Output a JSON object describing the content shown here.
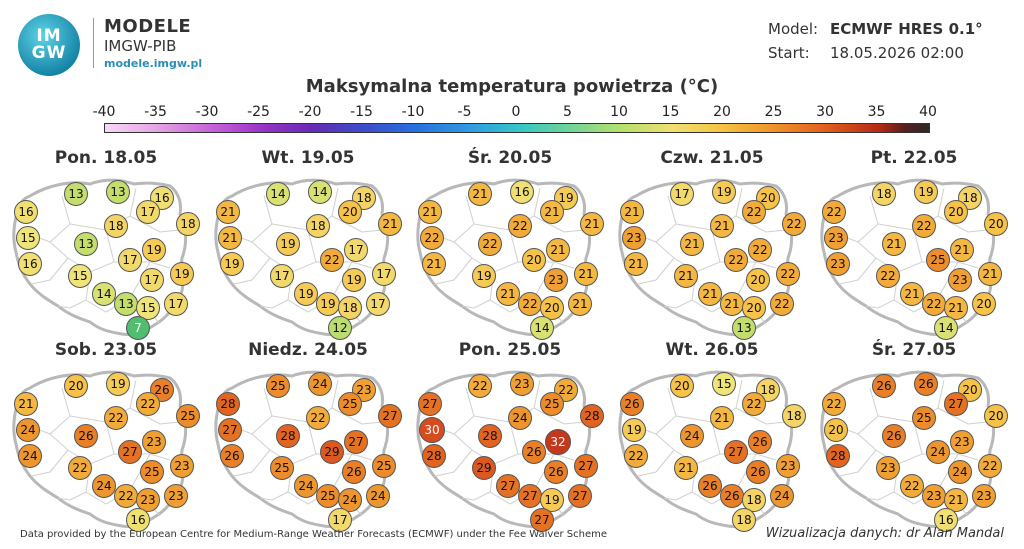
{
  "header": {
    "logo_text_top": "IM",
    "logo_text_bottom": "GW",
    "brand_title": "MODELE",
    "brand_subtitle": "IMGW-PIB",
    "brand_url": "modele.imgw.pl",
    "model_label": "Model:",
    "model_value": "ECMWF HRES 0.1°",
    "start_label": "Start:",
    "start_value": "18.05.2026 02:00"
  },
  "title": "Maksymalna temperatura powietrza (°C)",
  "scale": {
    "ticks": [
      "-40",
      "-35",
      "-30",
      "-25",
      "-20",
      "-15",
      "-10",
      "-5",
      "0",
      "5",
      "10",
      "15",
      "20",
      "25",
      "30",
      "35",
      "40"
    ],
    "min": -40,
    "max": 40
  },
  "panels": [
    {
      "title": "Pon. 18.05",
      "values": [
        13,
        13,
        16,
        16,
        18,
        17,
        18,
        15,
        13,
        19,
        16,
        17,
        15,
        17,
        19,
        14,
        13,
        15,
        17,
        7
      ]
    },
    {
      "title": "Wt. 19.05",
      "values": [
        14,
        14,
        18,
        21,
        18,
        20,
        21,
        21,
        19,
        17,
        19,
        22,
        17,
        19,
        17,
        19,
        19,
        18,
        17,
        12
      ]
    },
    {
      "title": "Śr. 20.05",
      "values": [
        21,
        16,
        19,
        21,
        22,
        21,
        21,
        22,
        22,
        21,
        21,
        20,
        19,
        23,
        21,
        21,
        22,
        20,
        21,
        14
      ]
    },
    {
      "title": "Czw. 21.05",
      "values": [
        17,
        19,
        20,
        21,
        21,
        22,
        22,
        23,
        21,
        22,
        21,
        22,
        21,
        20,
        22,
        21,
        21,
        20,
        22,
        13
      ]
    },
    {
      "title": "Pt. 22.05",
      "values": [
        18,
        19,
        18,
        22,
        22,
        20,
        20,
        23,
        21,
        21,
        23,
        25,
        22,
        23,
        21,
        21,
        22,
        21,
        20,
        14
      ]
    },
    {
      "title": "Sob. 23.05",
      "values": [
        20,
        19,
        26,
        21,
        22,
        22,
        25,
        24,
        26,
        23,
        24,
        27,
        22,
        25,
        23,
        24,
        22,
        23,
        23,
        16
      ]
    },
    {
      "title": "Niedz. 24.05",
      "values": [
        25,
        24,
        23,
        28,
        22,
        25,
        27,
        27,
        28,
        27,
        26,
        29,
        25,
        26,
        25,
        24,
        25,
        24,
        24,
        17
      ]
    },
    {
      "title": "Pon. 25.05",
      "values": [
        22,
        23,
        22,
        27,
        24,
        25,
        28,
        30,
        28,
        32,
        28,
        26,
        29,
        26,
        27,
        27,
        27,
        19,
        27,
        27
      ]
    },
    {
      "title": "Wt. 26.05",
      "values": [
        20,
        15,
        18,
        26,
        21,
        22,
        18,
        19,
        24,
        26,
        22,
        27,
        21,
        26,
        23,
        26,
        26,
        18,
        24,
        18
      ]
    },
    {
      "title": "Śr. 27.05",
      "values": [
        26,
        26,
        20,
        22,
        25,
        27,
        20,
        20,
        26,
        23,
        28,
        24,
        23,
        24,
        22,
        22,
        23,
        21,
        23,
        16
      ]
    }
  ],
  "footer": {
    "credit": "Data provided by the European Centre for Medium-Range Weather Forecasts (ECMWF) under the Fee Waiver Scheme",
    "visualization": "Wizualizacja danych: dr Alan Mandal"
  }
}
